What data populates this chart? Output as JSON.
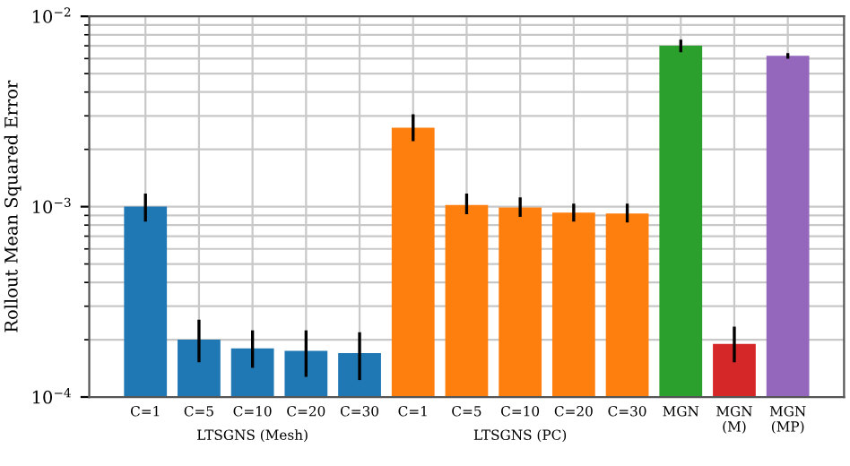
{
  "chart_data": {
    "type": "bar",
    "ylabel": "Rollout Mean Squared Error",
    "categories": [
      "C=1",
      "C=5",
      "C=10",
      "C=20",
      "C=30",
      "C=1",
      "C=5",
      "C=10",
      "C=20",
      "C=30",
      "MGN",
      "MGN\n(M)",
      "MGN\n(MP)"
    ],
    "values": [
      0.001,
      0.0002,
      0.00018,
      0.000175,
      0.00017,
      0.0026,
      0.00102,
      0.00099,
      0.00093,
      0.00092,
      0.007,
      0.00019,
      0.0062
    ],
    "errors": [
      [
        0.00085,
        0.00115
      ],
      [
        0.000155,
        0.00025
      ],
      [
        0.000145,
        0.00022
      ],
      [
        0.00013,
        0.00022
      ],
      [
        0.000125,
        0.000215
      ],
      [
        0.00225,
        0.003
      ],
      [
        0.00093,
        0.00115
      ],
      [
        0.0009,
        0.0011
      ],
      [
        0.00085,
        0.00102
      ],
      [
        0.00084,
        0.00102
      ],
      [
        0.0066,
        0.0074
      ],
      [
        0.000155,
        0.00023
      ],
      [
        0.0061,
        0.0063
      ]
    ],
    "colors": [
      "#1f77b4",
      "#1f77b4",
      "#1f77b4",
      "#1f77b4",
      "#1f77b4",
      "#ff7f0e",
      "#ff7f0e",
      "#ff7f0e",
      "#ff7f0e",
      "#ff7f0e",
      "#2ca02c",
      "#d62728",
      "#9467bd"
    ],
    "annotations": [
      "LTSGNS (Mesh)",
      "LTSGNS (PC)"
    ],
    "log": true,
    "ylim": [
      0.0001,
      0.01
    ],
    "yticks": [
      {
        "value": 0.0001,
        "label": "10$^{−4}$"
      },
      {
        "value": 0.001,
        "label": "10$^{−3}$"
      },
      {
        "value": 0.01,
        "label": "10$^{−2}$"
      }
    ],
    "grid": true
  }
}
